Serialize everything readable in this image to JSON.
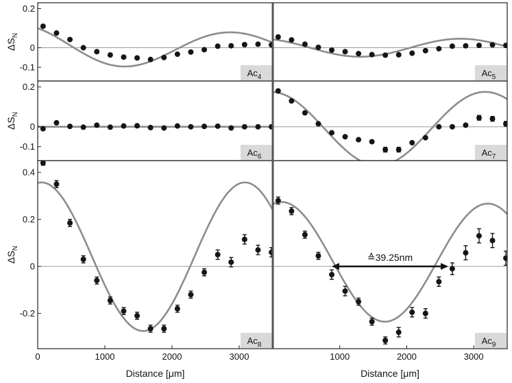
{
  "chart_data": [
    {
      "type": "scatter",
      "label": "Ac",
      "label_sub": "4",
      "ylabel": "ΔS",
      "ylabel_sub": "N",
      "xlabel": "",
      "yticks": [
        {
          "v": 0.2,
          "t": "0.2"
        },
        {
          "v": 0,
          "t": "0"
        },
        {
          "v": -0.1,
          "t": "-0.1"
        }
      ],
      "xticks": [],
      "xlim": [
        0,
        3500
      ],
      "ylim": [
        -0.17,
        0.23
      ],
      "fit": {
        "A": 0.113,
        "w": 0.002,
        "phi": 0.49,
        "c": 0.125,
        "d": 0.0,
        "x0": 0
      },
      "points": [
        {
          "x": 80,
          "y": 0.11,
          "e": 0.005
        },
        {
          "x": 280,
          "y": 0.075,
          "e": 0.005
        },
        {
          "x": 480,
          "y": 0.042,
          "e": 0.005
        },
        {
          "x": 680,
          "y": 0.0,
          "e": 0.005
        },
        {
          "x": 880,
          "y": -0.02,
          "e": 0.005
        },
        {
          "x": 1080,
          "y": -0.037,
          "e": 0.005
        },
        {
          "x": 1280,
          "y": -0.048,
          "e": 0.005
        },
        {
          "x": 1480,
          "y": -0.052,
          "e": 0.005
        },
        {
          "x": 1680,
          "y": -0.06,
          "e": 0.006
        },
        {
          "x": 1880,
          "y": -0.05,
          "e": 0.005
        },
        {
          "x": 2080,
          "y": -0.033,
          "e": 0.005
        },
        {
          "x": 2280,
          "y": -0.022,
          "e": 0.005
        },
        {
          "x": 2480,
          "y": -0.01,
          "e": 0.005
        },
        {
          "x": 2680,
          "y": 0.008,
          "e": 0.005
        },
        {
          "x": 2880,
          "y": 0.01,
          "e": 0.005
        },
        {
          "x": 3080,
          "y": 0.016,
          "e": 0.005
        },
        {
          "x": 3280,
          "y": 0.018,
          "e": 0.005
        },
        {
          "x": 3480,
          "y": 0.015,
          "e": 0.005
        }
      ]
    },
    {
      "type": "scatter",
      "label": "Ac",
      "label_sub": "5",
      "ylabel": "",
      "ylabel_sub": "",
      "xlabel": "",
      "yticks": [],
      "xticks": [],
      "xlim": [
        0,
        3500
      ],
      "ylim": [
        -0.17,
        0.23
      ],
      "fit": {
        "A": 0.046,
        "w": 0.0021,
        "phi": 0.4,
        "c": 0.0,
        "d": 0.0,
        "x0": 0
      },
      "points": [
        {
          "x": 80,
          "y": 0.055,
          "e": 0.006
        },
        {
          "x": 280,
          "y": 0.04,
          "e": 0.005
        },
        {
          "x": 480,
          "y": 0.018,
          "e": 0.005
        },
        {
          "x": 680,
          "y": 0.002,
          "e": 0.005
        },
        {
          "x": 880,
          "y": -0.012,
          "e": 0.005
        },
        {
          "x": 1080,
          "y": -0.02,
          "e": 0.005
        },
        {
          "x": 1280,
          "y": -0.03,
          "e": 0.005
        },
        {
          "x": 1480,
          "y": -0.035,
          "e": 0.005
        },
        {
          "x": 1680,
          "y": -0.038,
          "e": 0.005
        },
        {
          "x": 1880,
          "y": -0.036,
          "e": 0.005
        },
        {
          "x": 2080,
          "y": -0.028,
          "e": 0.006
        },
        {
          "x": 2280,
          "y": -0.015,
          "e": 0.005
        },
        {
          "x": 2480,
          "y": -0.005,
          "e": 0.005
        },
        {
          "x": 2680,
          "y": 0.008,
          "e": 0.005
        },
        {
          "x": 2880,
          "y": 0.01,
          "e": 0.005
        },
        {
          "x": 3080,
          "y": 0.012,
          "e": 0.005
        },
        {
          "x": 3280,
          "y": 0.015,
          "e": 0.006
        },
        {
          "x": 3480,
          "y": 0.012,
          "e": 0.006
        }
      ]
    },
    {
      "type": "scatter",
      "label": "Ac",
      "label_sub": "6",
      "ylabel": "ΔS",
      "ylabel_sub": "N",
      "xlabel": "",
      "yticks": [
        {
          "v": 0.2,
          "t": "0.2"
        },
        {
          "v": 0,
          "t": "0"
        },
        {
          "v": -0.1,
          "t": "-0.1"
        }
      ],
      "xticks": [],
      "xlim": [
        0,
        3500
      ],
      "ylim": [
        -0.17,
        0.23
      ],
      "fit": {
        "A": 0.0,
        "w": 0.002,
        "phi": 0.0,
        "c": 0.0,
        "d": 0.0,
        "x0": 0
      },
      "points": [
        {
          "x": 80,
          "y": -0.01,
          "e": 0.008
        },
        {
          "x": 280,
          "y": 0.02,
          "e": 0.008
        },
        {
          "x": 480,
          "y": 0.002,
          "e": 0.007
        },
        {
          "x": 680,
          "y": -0.002,
          "e": 0.007
        },
        {
          "x": 880,
          "y": 0.008,
          "e": 0.008
        },
        {
          "x": 1080,
          "y": -0.002,
          "e": 0.007
        },
        {
          "x": 1280,
          "y": 0.004,
          "e": 0.007
        },
        {
          "x": 1480,
          "y": 0.005,
          "e": 0.008
        },
        {
          "x": 1680,
          "y": -0.004,
          "e": 0.007
        },
        {
          "x": 1880,
          "y": -0.006,
          "e": 0.007
        },
        {
          "x": 2080,
          "y": 0.004,
          "e": 0.008
        },
        {
          "x": 2280,
          "y": 0.0,
          "e": 0.008
        },
        {
          "x": 2480,
          "y": 0.002,
          "e": 0.008
        },
        {
          "x": 2680,
          "y": 0.003,
          "e": 0.007
        },
        {
          "x": 2880,
          "y": -0.006,
          "e": 0.007
        },
        {
          "x": 3080,
          "y": 0.0,
          "e": 0.008
        },
        {
          "x": 3280,
          "y": 0.0,
          "e": 0.008
        },
        {
          "x": 3480,
          "y": 0.0,
          "e": 0.008
        }
      ]
    },
    {
      "type": "scatter",
      "label": "Ac",
      "label_sub": "7",
      "ylabel": "",
      "ylabel_sub": "",
      "xlabel": "",
      "yticks": [],
      "xticks": [],
      "xlim": [
        0,
        3500
      ],
      "ylim": [
        -0.17,
        0.23
      ],
      "fit": {
        "A": 0.175,
        "w": 0.002,
        "phi": 0.0,
        "c": 0.0,
        "d": -0.02,
        "x0": 0
      },
      "points": [
        {
          "x": 80,
          "y": 0.18,
          "e": 0.01
        },
        {
          "x": 280,
          "y": 0.13,
          "e": 0.01
        },
        {
          "x": 480,
          "y": 0.07,
          "e": 0.01
        },
        {
          "x": 680,
          "y": 0.015,
          "e": 0.01
        },
        {
          "x": 880,
          "y": -0.03,
          "e": 0.01
        },
        {
          "x": 1080,
          "y": -0.05,
          "e": 0.01
        },
        {
          "x": 1280,
          "y": -0.065,
          "e": 0.01
        },
        {
          "x": 1480,
          "y": -0.075,
          "e": 0.01
        },
        {
          "x": 1680,
          "y": -0.115,
          "e": 0.012
        },
        {
          "x": 1880,
          "y": -0.115,
          "e": 0.012
        },
        {
          "x": 2080,
          "y": -0.08,
          "e": 0.01
        },
        {
          "x": 2280,
          "y": -0.055,
          "e": 0.01
        },
        {
          "x": 2480,
          "y": 0.0,
          "e": 0.01
        },
        {
          "x": 2680,
          "y": 0.0,
          "e": 0.01
        },
        {
          "x": 2880,
          "y": 0.008,
          "e": 0.01
        },
        {
          "x": 3080,
          "y": 0.045,
          "e": 0.012
        },
        {
          "x": 3280,
          "y": 0.04,
          "e": 0.012
        },
        {
          "x": 3480,
          "y": 0.015,
          "e": 0.012
        }
      ]
    },
    {
      "type": "scatter",
      "label": "Ac",
      "label_sub": "8",
      "ylabel": "ΔS",
      "ylabel_sub": "N",
      "xlabel": "Distance [μm]",
      "yticks": [
        {
          "v": 0.4,
          "t": "0.4"
        },
        {
          "v": 0.2,
          "t": "0.2"
        },
        {
          "v": 0,
          "t": "0"
        },
        {
          "v": -0.2,
          "t": "-0.2"
        }
      ],
      "xticks": [
        {
          "v": 0,
          "t": "0"
        },
        {
          "v": 1000,
          "t": "1000"
        },
        {
          "v": 2000,
          "t": "2000"
        },
        {
          "v": 3000,
          "t": "3000"
        }
      ],
      "xlim": [
        0,
        3500
      ],
      "ylim": [
        -0.35,
        0.45
      ],
      "fit": {
        "A": 0.355,
        "w": 0.002,
        "phi": 0.0,
        "c": 0.0,
        "d": 0.08,
        "x0": 0
      },
      "points": [
        {
          "x": 80,
          "y": 0.44,
          "e": 0.01
        },
        {
          "x": 280,
          "y": 0.35,
          "e": 0.015
        },
        {
          "x": 480,
          "y": 0.185,
          "e": 0.015
        },
        {
          "x": 680,
          "y": 0.03,
          "e": 0.015
        },
        {
          "x": 880,
          "y": -0.06,
          "e": 0.015
        },
        {
          "x": 1080,
          "y": -0.145,
          "e": 0.015
        },
        {
          "x": 1280,
          "y": -0.19,
          "e": 0.015
        },
        {
          "x": 1480,
          "y": -0.21,
          "e": 0.015
        },
        {
          "x": 1680,
          "y": -0.265,
          "e": 0.015
        },
        {
          "x": 1880,
          "y": -0.265,
          "e": 0.015
        },
        {
          "x": 2080,
          "y": -0.18,
          "e": 0.015
        },
        {
          "x": 2280,
          "y": -0.12,
          "e": 0.015
        },
        {
          "x": 2480,
          "y": -0.025,
          "e": 0.015
        },
        {
          "x": 2680,
          "y": 0.05,
          "e": 0.02
        },
        {
          "x": 2880,
          "y": 0.018,
          "e": 0.02
        },
        {
          "x": 3080,
          "y": 0.115,
          "e": 0.02
        },
        {
          "x": 3280,
          "y": 0.07,
          "e": 0.02
        },
        {
          "x": 3480,
          "y": 0.06,
          "e": 0.02
        }
      ]
    },
    {
      "type": "scatter",
      "label": "Ac",
      "label_sub": "9",
      "ylabel": "",
      "ylabel_sub": "",
      "xlabel": "Distance [μm]",
      "yticks": [],
      "xticks": [
        {
          "v": 1000,
          "t": "1000"
        },
        {
          "v": 2000,
          "t": "2000"
        },
        {
          "v": 3000,
          "t": "3000"
        }
      ],
      "xlim": [
        0,
        3500
      ],
      "ylim": [
        -0.35,
        0.45
      ],
      "fit": {
        "A": 0.27,
        "w": 0.002,
        "phi": -0.2,
        "c": 0.0,
        "d": 0.035,
        "x0": 0
      },
      "annotation": {
        "text": "≙39.25nm",
        "x1": 880,
        "x2": 2620,
        "y": 0.0
      },
      "points": [
        {
          "x": 80,
          "y": 0.28,
          "e": 0.015
        },
        {
          "x": 280,
          "y": 0.235,
          "e": 0.015
        },
        {
          "x": 480,
          "y": 0.135,
          "e": 0.015
        },
        {
          "x": 680,
          "y": 0.045,
          "e": 0.015
        },
        {
          "x": 880,
          "y": -0.035,
          "e": 0.02
        },
        {
          "x": 1080,
          "y": -0.105,
          "e": 0.02
        },
        {
          "x": 1280,
          "y": -0.15,
          "e": 0.015
        },
        {
          "x": 1480,
          "y": -0.235,
          "e": 0.015
        },
        {
          "x": 1680,
          "y": -0.315,
          "e": 0.015
        },
        {
          "x": 1880,
          "y": -0.28,
          "e": 0.02
        },
        {
          "x": 2080,
          "y": -0.195,
          "e": 0.02
        },
        {
          "x": 2280,
          "y": -0.2,
          "e": 0.02
        },
        {
          "x": 2480,
          "y": -0.065,
          "e": 0.02
        },
        {
          "x": 2680,
          "y": -0.01,
          "e": 0.025
        },
        {
          "x": 2880,
          "y": 0.058,
          "e": 0.03
        },
        {
          "x": 3080,
          "y": 0.13,
          "e": 0.03
        },
        {
          "x": 3280,
          "y": 0.11,
          "e": 0.03
        },
        {
          "x": 3480,
          "y": 0.035,
          "e": 0.03
        }
      ]
    }
  ],
  "colors": {
    "marker": "#151515",
    "fit": "#8c8c8c",
    "zero": "#9a9a9a",
    "label_box": "#d9d9d9",
    "frame": "#222222",
    "divider": "#555555"
  }
}
